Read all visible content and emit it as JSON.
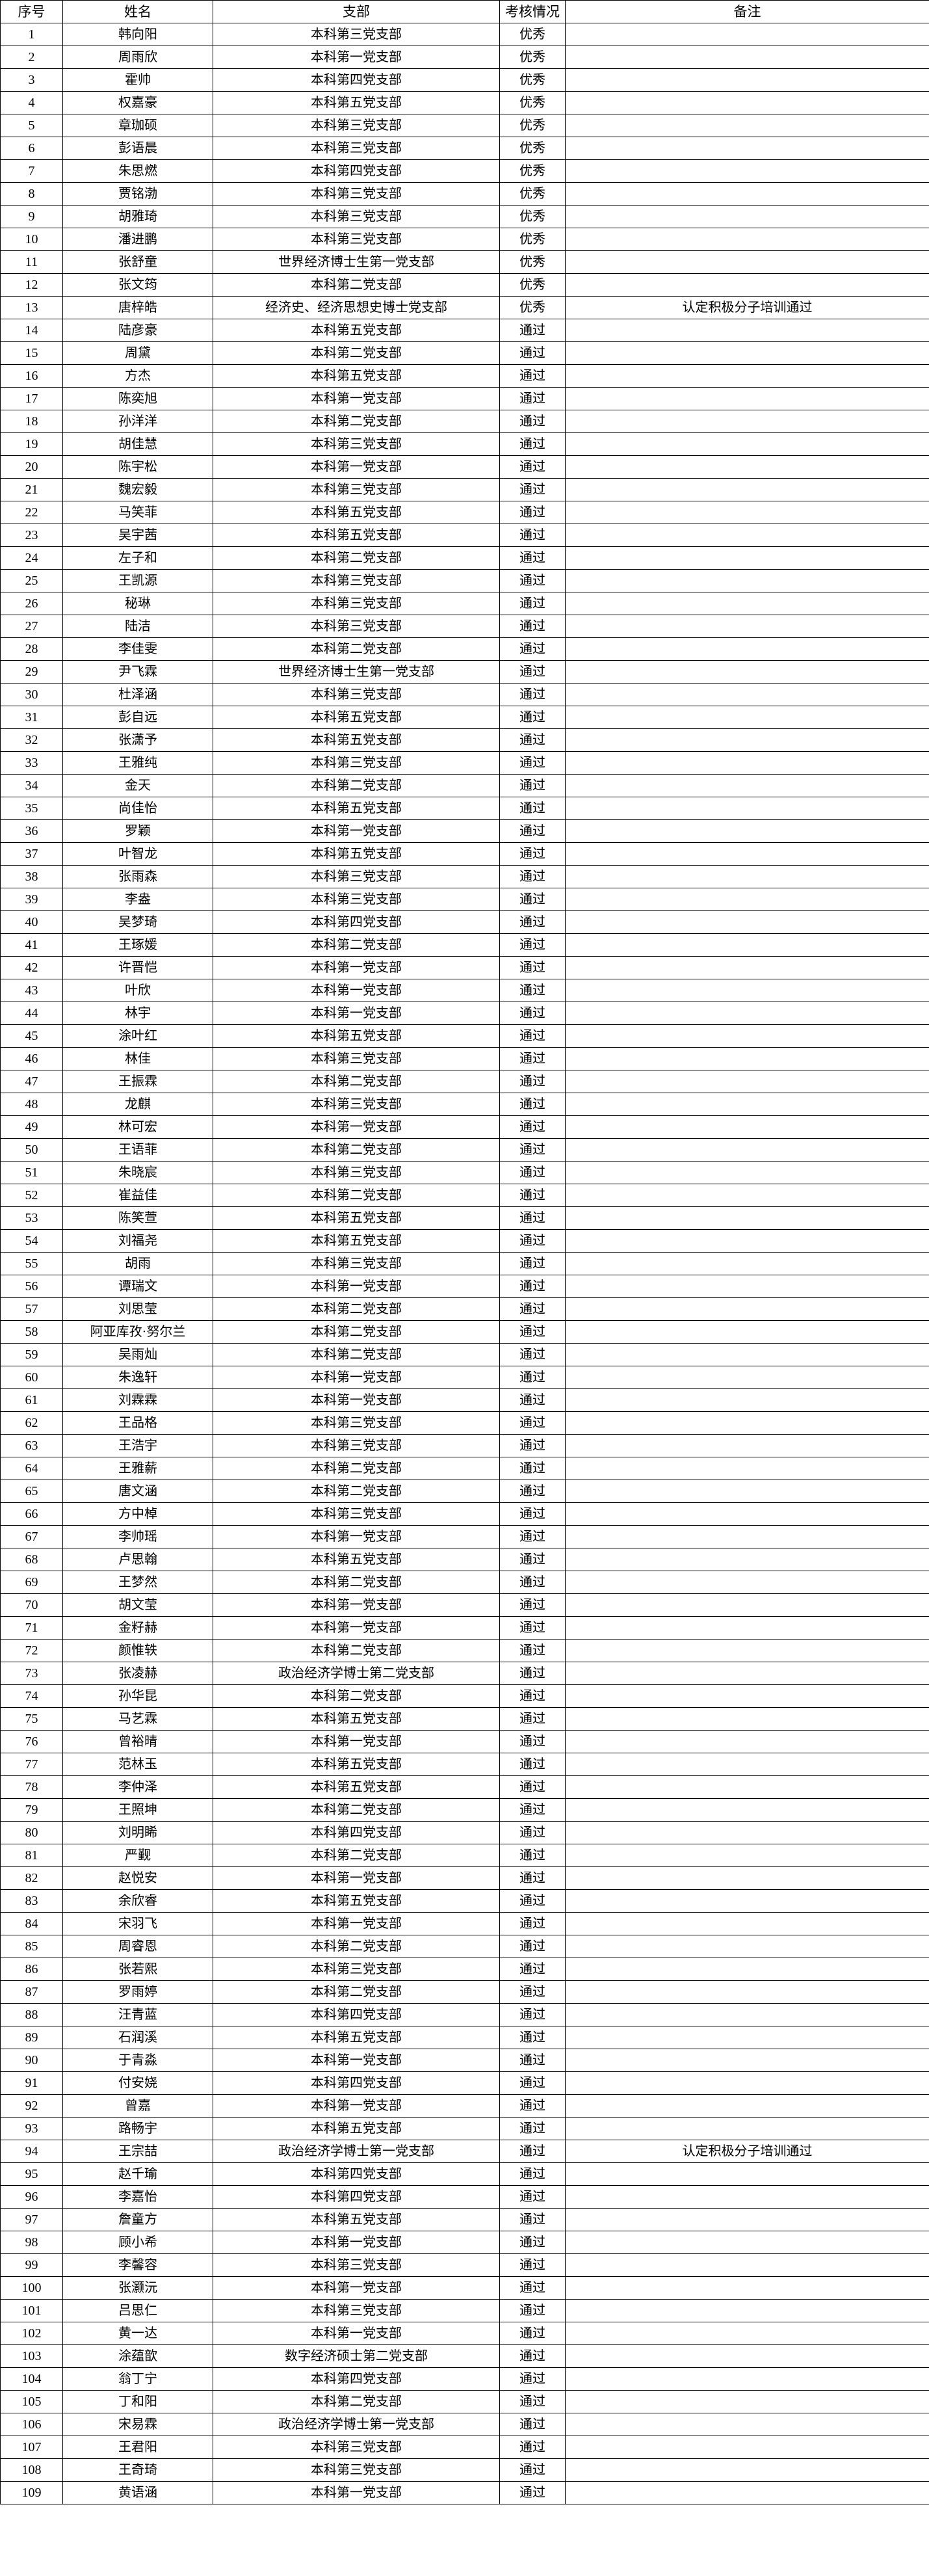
{
  "table": {
    "columns": [
      "序号",
      "姓名",
      "支部",
      "考核情况",
      "备注"
    ],
    "rows": [
      [
        "1",
        "韩向阳",
        "本科第三党支部",
        "优秀",
        ""
      ],
      [
        "2",
        "周雨欣",
        "本科第一党支部",
        "优秀",
        ""
      ],
      [
        "3",
        "霍帅",
        "本科第四党支部",
        "优秀",
        ""
      ],
      [
        "4",
        "权嘉豪",
        "本科第五党支部",
        "优秀",
        ""
      ],
      [
        "5",
        "章珈硕",
        "本科第三党支部",
        "优秀",
        ""
      ],
      [
        "6",
        "彭语晨",
        "本科第三党支部",
        "优秀",
        ""
      ],
      [
        "7",
        "朱思燃",
        "本科第四党支部",
        "优秀",
        ""
      ],
      [
        "8",
        "贾铭渤",
        "本科第三党支部",
        "优秀",
        ""
      ],
      [
        "9",
        "胡雅琦",
        "本科第三党支部",
        "优秀",
        ""
      ],
      [
        "10",
        "潘进鹏",
        "本科第三党支部",
        "优秀",
        ""
      ],
      [
        "11",
        "张舒童",
        "世界经济博士生第一党支部",
        "优秀",
        ""
      ],
      [
        "12",
        "张文筠",
        "本科第二党支部",
        "优秀",
        ""
      ],
      [
        "13",
        "唐梓皓",
        "经济史、经济思想史博士党支部",
        "优秀",
        "认定积极分子培训通过"
      ],
      [
        "14",
        "陆彦豪",
        "本科第五党支部",
        "通过",
        ""
      ],
      [
        "15",
        "周黛",
        "本科第二党支部",
        "通过",
        ""
      ],
      [
        "16",
        "方杰",
        "本科第五党支部",
        "通过",
        ""
      ],
      [
        "17",
        "陈奕旭",
        "本科第一党支部",
        "通过",
        ""
      ],
      [
        "18",
        "孙洋洋",
        "本科第二党支部",
        "通过",
        ""
      ],
      [
        "19",
        "胡佳慧",
        "本科第三党支部",
        "通过",
        ""
      ],
      [
        "20",
        "陈宇松",
        "本科第一党支部",
        "通过",
        ""
      ],
      [
        "21",
        "魏宏毅",
        "本科第三党支部",
        "通过",
        ""
      ],
      [
        "22",
        "马笑菲",
        "本科第五党支部",
        "通过",
        ""
      ],
      [
        "23",
        "吴宇茜",
        "本科第五党支部",
        "通过",
        ""
      ],
      [
        "24",
        "左子和",
        "本科第二党支部",
        "通过",
        ""
      ],
      [
        "25",
        "王凯源",
        "本科第三党支部",
        "通过",
        ""
      ],
      [
        "26",
        "秘琳",
        "本科第三党支部",
        "通过",
        ""
      ],
      [
        "27",
        "陆洁",
        "本科第三党支部",
        "通过",
        ""
      ],
      [
        "28",
        "李佳雯",
        "本科第二党支部",
        "通过",
        ""
      ],
      [
        "29",
        "尹飞霖",
        "世界经济博士生第一党支部",
        "通过",
        ""
      ],
      [
        "30",
        "杜泽涵",
        "本科第三党支部",
        "通过",
        ""
      ],
      [
        "31",
        "彭自远",
        "本科第五党支部",
        "通过",
        ""
      ],
      [
        "32",
        "张潇予",
        "本科第五党支部",
        "通过",
        ""
      ],
      [
        "33",
        "王雅纯",
        "本科第三党支部",
        "通过",
        ""
      ],
      [
        "34",
        "金天",
        "本科第二党支部",
        "通过",
        ""
      ],
      [
        "35",
        "尚佳怡",
        "本科第五党支部",
        "通过",
        ""
      ],
      [
        "36",
        "罗颖",
        "本科第一党支部",
        "通过",
        ""
      ],
      [
        "37",
        "叶智龙",
        "本科第五党支部",
        "通过",
        ""
      ],
      [
        "38",
        "张雨森",
        "本科第三党支部",
        "通过",
        ""
      ],
      [
        "39",
        "李盎",
        "本科第三党支部",
        "通过",
        ""
      ],
      [
        "40",
        "吴梦琦",
        "本科第四党支部",
        "通过",
        ""
      ],
      [
        "41",
        "王琢媛",
        "本科第二党支部",
        "通过",
        ""
      ],
      [
        "42",
        "许晋恺",
        "本科第一党支部",
        "通过",
        ""
      ],
      [
        "43",
        "叶欣",
        "本科第一党支部",
        "通过",
        ""
      ],
      [
        "44",
        "林宇",
        "本科第一党支部",
        "通过",
        ""
      ],
      [
        "45",
        "涂叶红",
        "本科第五党支部",
        "通过",
        ""
      ],
      [
        "46",
        "林佳",
        "本科第三党支部",
        "通过",
        ""
      ],
      [
        "47",
        "王振霖",
        "本科第二党支部",
        "通过",
        ""
      ],
      [
        "48",
        "龙麒",
        "本科第三党支部",
        "通过",
        ""
      ],
      [
        "49",
        "林可宏",
        "本科第一党支部",
        "通过",
        ""
      ],
      [
        "50",
        "王语菲",
        "本科第二党支部",
        "通过",
        ""
      ],
      [
        "51",
        "朱晓宸",
        "本科第三党支部",
        "通过",
        ""
      ],
      [
        "52",
        "崔益佳",
        "本科第二党支部",
        "通过",
        ""
      ],
      [
        "53",
        "陈笑萱",
        "本科第五党支部",
        "通过",
        ""
      ],
      [
        "54",
        "刘福尧",
        "本科第五党支部",
        "通过",
        ""
      ],
      [
        "55",
        "胡雨",
        "本科第三党支部",
        "通过",
        ""
      ],
      [
        "56",
        "谭瑞文",
        "本科第一党支部",
        "通过",
        ""
      ],
      [
        "57",
        "刘思莹",
        "本科第二党支部",
        "通过",
        ""
      ],
      [
        "58",
        "阿亚库孜·努尔兰",
        "本科第二党支部",
        "通过",
        ""
      ],
      [
        "59",
        "吴雨灿",
        "本科第二党支部",
        "通过",
        ""
      ],
      [
        "60",
        "朱逸轩",
        "本科第一党支部",
        "通过",
        ""
      ],
      [
        "61",
        "刘霖霖",
        "本科第一党支部",
        "通过",
        ""
      ],
      [
        "62",
        "王品格",
        "本科第三党支部",
        "通过",
        ""
      ],
      [
        "63",
        "王浩宇",
        "本科第三党支部",
        "通过",
        ""
      ],
      [
        "64",
        "王雅薪",
        "本科第二党支部",
        "通过",
        ""
      ],
      [
        "65",
        "唐文涵",
        "本科第二党支部",
        "通过",
        ""
      ],
      [
        "66",
        "方中棹",
        "本科第三党支部",
        "通过",
        ""
      ],
      [
        "67",
        "李帅瑶",
        "本科第一党支部",
        "通过",
        ""
      ],
      [
        "68",
        "卢思翰",
        "本科第五党支部",
        "通过",
        ""
      ],
      [
        "69",
        "王梦然",
        "本科第二党支部",
        "通过",
        ""
      ],
      [
        "70",
        "胡文莹",
        "本科第一党支部",
        "通过",
        ""
      ],
      [
        "71",
        "金籽赫",
        "本科第一党支部",
        "通过",
        ""
      ],
      [
        "72",
        "颜惟轶",
        "本科第二党支部",
        "通过",
        ""
      ],
      [
        "73",
        "张凌赫",
        "政治经济学博士第二党支部",
        "通过",
        ""
      ],
      [
        "74",
        "孙华昆",
        "本科第二党支部",
        "通过",
        ""
      ],
      [
        "75",
        "马艺霖",
        "本科第五党支部",
        "通过",
        ""
      ],
      [
        "76",
        "曾裕晴",
        "本科第一党支部",
        "通过",
        ""
      ],
      [
        "77",
        "范林玉",
        "本科第五党支部",
        "通过",
        ""
      ],
      [
        "78",
        "李仲泽",
        "本科第五党支部",
        "通过",
        ""
      ],
      [
        "79",
        "王照坤",
        "本科第二党支部",
        "通过",
        ""
      ],
      [
        "80",
        "刘明睎",
        "本科第四党支部",
        "通过",
        ""
      ],
      [
        "81",
        "严觐",
        "本科第二党支部",
        "通过",
        ""
      ],
      [
        "82",
        "赵悦安",
        "本科第一党支部",
        "通过",
        ""
      ],
      [
        "83",
        "余欣睿",
        "本科第五党支部",
        "通过",
        ""
      ],
      [
        "84",
        "宋羽飞",
        "本科第一党支部",
        "通过",
        ""
      ],
      [
        "85",
        "周睿恩",
        "本科第二党支部",
        "通过",
        ""
      ],
      [
        "86",
        "张若熙",
        "本科第三党支部",
        "通过",
        ""
      ],
      [
        "87",
        "罗雨婷",
        "本科第二党支部",
        "通过",
        ""
      ],
      [
        "88",
        "汪青蓝",
        "本科第四党支部",
        "通过",
        ""
      ],
      [
        "89",
        "石润溪",
        "本科第五党支部",
        "通过",
        ""
      ],
      [
        "90",
        "于青淼",
        "本科第一党支部",
        "通过",
        ""
      ],
      [
        "91",
        "付安娆",
        "本科第四党支部",
        "通过",
        ""
      ],
      [
        "92",
        "曾嘉",
        "本科第一党支部",
        "通过",
        ""
      ],
      [
        "93",
        "路畅宇",
        "本科第五党支部",
        "通过",
        ""
      ],
      [
        "94",
        "王宗喆",
        "政治经济学博士第一党支部",
        "通过",
        "认定积极分子培训通过"
      ],
      [
        "95",
        "赵千瑜",
        "本科第四党支部",
        "通过",
        ""
      ],
      [
        "96",
        "李嘉怡",
        "本科第四党支部",
        "通过",
        ""
      ],
      [
        "97",
        "詹童方",
        "本科第五党支部",
        "通过",
        ""
      ],
      [
        "98",
        "顾小希",
        "本科第一党支部",
        "通过",
        ""
      ],
      [
        "99",
        "李馨容",
        "本科第三党支部",
        "通过",
        ""
      ],
      [
        "100",
        "张灏沅",
        "本科第一党支部",
        "通过",
        ""
      ],
      [
        "101",
        "吕思仁",
        "本科第三党支部",
        "通过",
        ""
      ],
      [
        "102",
        "黄一达",
        "本科第一党支部",
        "通过",
        ""
      ],
      [
        "103",
        "涂蕴歆",
        "数字经济硕士第二党支部",
        "通过",
        ""
      ],
      [
        "104",
        "翁丁宁",
        "本科第四党支部",
        "通过",
        ""
      ],
      [
        "105",
        "丁和阳",
        "本科第二党支部",
        "通过",
        ""
      ],
      [
        "106",
        "宋易霖",
        "政治经济学博士第一党支部",
        "通过",
        ""
      ],
      [
        "107",
        "王君阳",
        "本科第三党支部",
        "通过",
        ""
      ],
      [
        "108",
        "王奇琦",
        "本科第三党支部",
        "通过",
        ""
      ],
      [
        "109",
        "黄语涵",
        "本科第一党支部",
        "通过",
        ""
      ]
    ]
  }
}
